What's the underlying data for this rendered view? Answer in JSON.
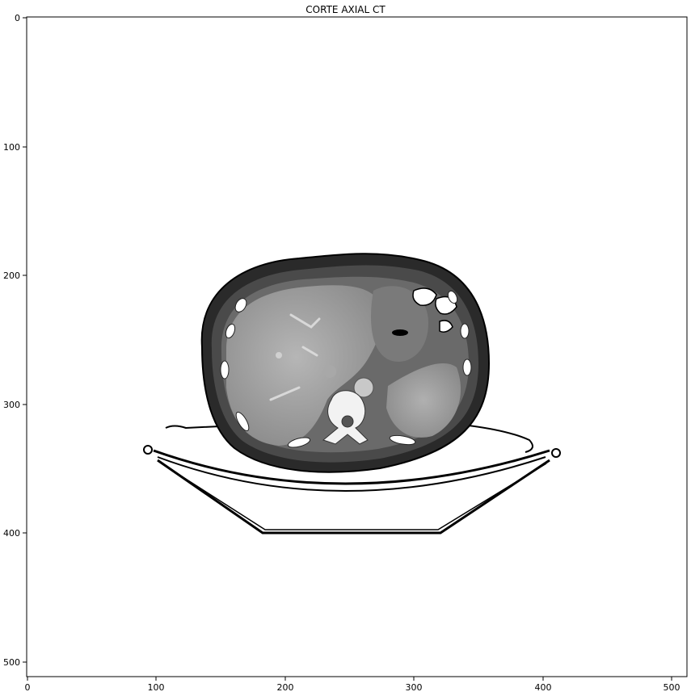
{
  "figure": {
    "title": "CORTE AXIAL CT",
    "image_description_tags": [
      "axial-ct-slice",
      "abdomen",
      "grayscale"
    ],
    "x_axis": {
      "range": [
        0,
        512
      ],
      "ticks": [
        "0",
        "100",
        "200",
        "300",
        "400",
        "500"
      ]
    },
    "y_axis": {
      "range": [
        0,
        512
      ],
      "inverted": true,
      "ticks": [
        "0",
        "100",
        "200",
        "300",
        "400",
        "500"
      ]
    },
    "colors": {
      "frame": "#000000",
      "background": "#ffffff"
    }
  }
}
